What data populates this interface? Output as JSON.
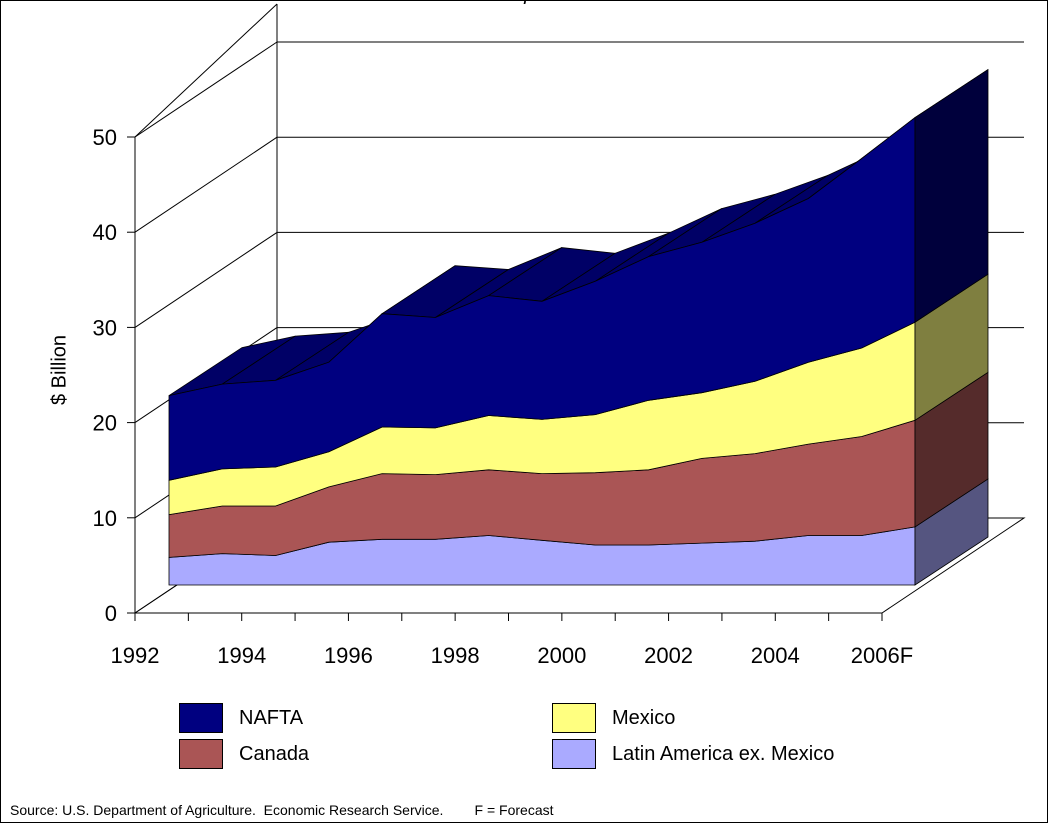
{
  "chart_data": {
    "type": "area",
    "title_fragment": ")",
    "ylabel": "$ Billion",
    "ylim": [
      0,
      50
    ],
    "yticks": [
      "0",
      "10",
      "20",
      "30",
      "40",
      "50"
    ],
    "xtick_labels": [
      "1992",
      "1994",
      "1996",
      "1998",
      "2000",
      "2002",
      "2004",
      "2006F"
    ],
    "x": [
      "1992",
      "1993",
      "1994",
      "1995",
      "1996",
      "1997",
      "1998",
      "1999",
      "2000",
      "2001",
      "2002",
      "2003",
      "2004",
      "2005",
      "2006F"
    ],
    "stacked": true,
    "series": [
      {
        "name": "Latin America ex. Mexico",
        "values": [
          2.9,
          3.3,
          3.1,
          4.5,
          4.8,
          4.8,
          5.2,
          4.7,
          4.2,
          4.2,
          4.4,
          4.6,
          5.2,
          5.2,
          6.1
        ]
      },
      {
        "name": "Canada",
        "values": [
          4.5,
          5.0,
          5.2,
          5.8,
          6.9,
          6.8,
          6.9,
          7.0,
          7.6,
          7.9,
          8.9,
          9.2,
          9.6,
          10.4,
          11.2
        ]
      },
      {
        "name": "Mexico",
        "values": [
          3.6,
          3.9,
          4.1,
          3.7,
          4.9,
          4.9,
          5.7,
          5.7,
          6.1,
          7.3,
          6.9,
          7.6,
          8.6,
          9.3,
          10.3
        ]
      },
      {
        "name": "NAFTA",
        "values": [
          8.9,
          8.9,
          9.1,
          9.4,
          11.9,
          11.6,
          12.6,
          12.4,
          14.0,
          15.1,
          15.8,
          16.6,
          17.2,
          19.9,
          21.5
        ]
      }
    ],
    "colors": {
      "NAFTA": "#000080",
      "NAFTA_top": "#000066",
      "NAFTA_side": "#00003c",
      "Mexico": "#ffff80",
      "Mexico_side": "#7f7f40",
      "Canada": "#aa5555",
      "Canada_side": "#552b2b",
      "Latin America ex. Mexico": "#aaaaff",
      "Latin America ex. Mexico_side": "#555580"
    },
    "legend": [
      {
        "label": "NAFTA",
        "key": "NAFTA"
      },
      {
        "label": "Mexico",
        "key": "Mexico"
      },
      {
        "label": "Canada",
        "key": "Canada"
      },
      {
        "label": "Latin America ex. Mexico",
        "key": "Latin America ex. Mexico"
      }
    ],
    "grid": true,
    "legend_placement": "bottom"
  },
  "source_note": "Source: U.S. Department of Agriculture.  Economic Research Service.        F = Forecast"
}
